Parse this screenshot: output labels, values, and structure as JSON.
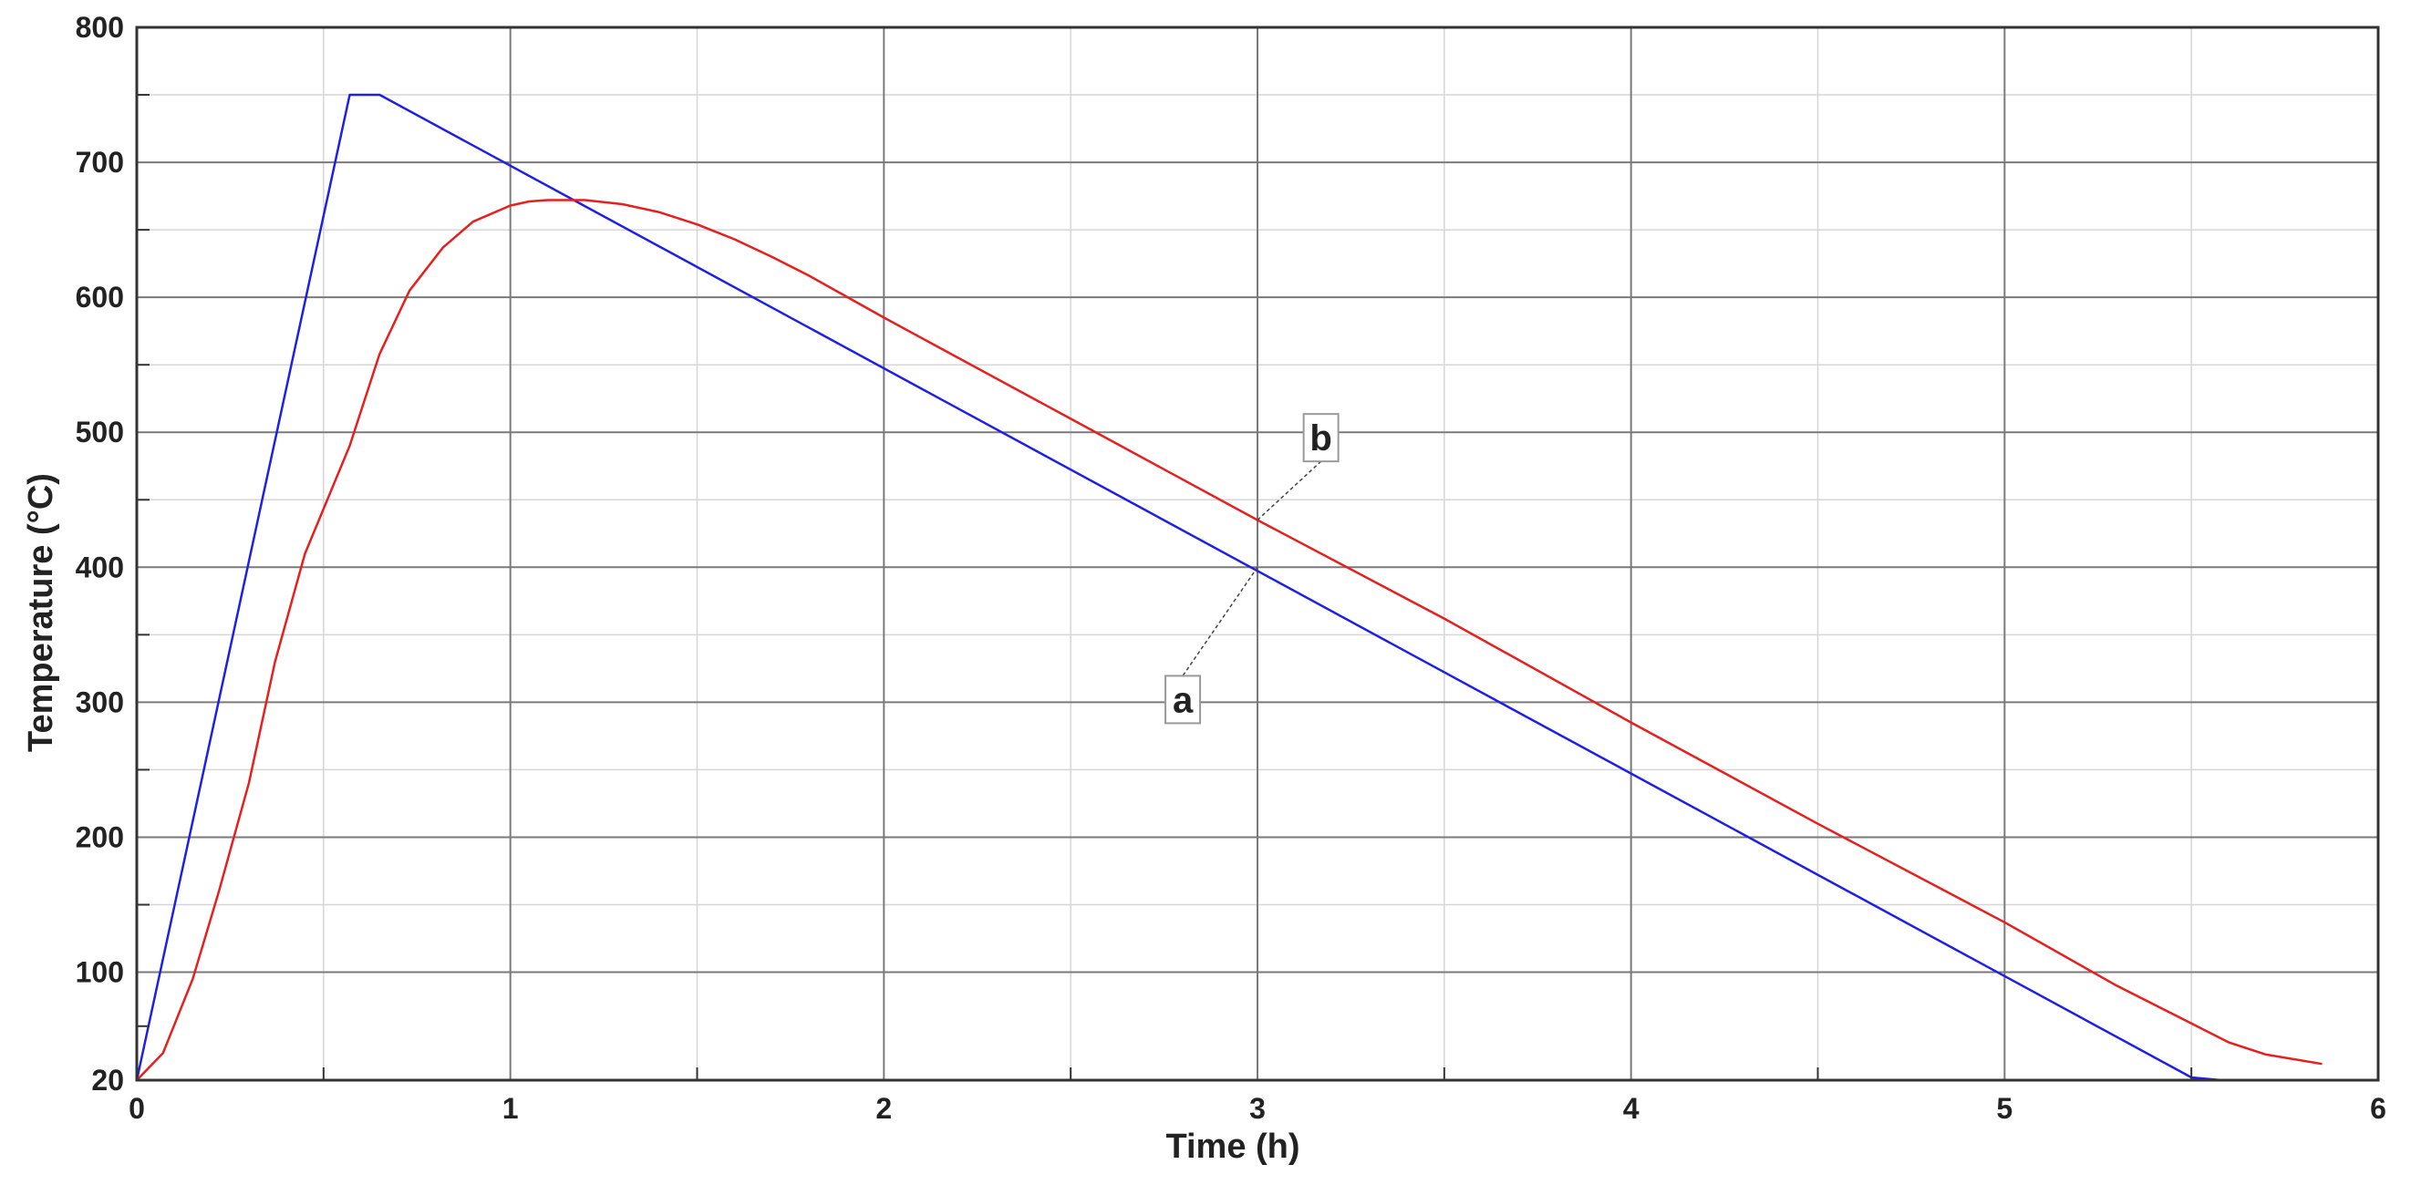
{
  "chart_data": {
    "type": "line",
    "xlabel": "Time (h)",
    "ylabel": "Temperature (°C)",
    "xlim": [
      0,
      6
    ],
    "ylim": [
      20,
      800
    ],
    "x_ticks": [
      0,
      1,
      2,
      3,
      4,
      5,
      6
    ],
    "y_ticks": [
      20,
      100,
      200,
      300,
      400,
      500,
      600,
      700,
      800
    ],
    "grid": true,
    "colors": {
      "a": "#1f1fe6",
      "b": "#e61f1f",
      "grid_major": "#7a7a7a",
      "grid_minor": "#d6d6d6"
    },
    "series": [
      {
        "name": "a",
        "x": [
          0,
          0.57,
          0.65,
          5.5,
          5.58,
          5.85
        ],
        "y": [
          20,
          750,
          750,
          22,
          20,
          20
        ]
      },
      {
        "name": "b",
        "x": [
          0,
          0.07,
          0.15,
          0.22,
          0.3,
          0.37,
          0.45,
          0.57,
          0.65,
          0.73,
          0.82,
          0.9,
          1.0,
          1.05,
          1.1,
          1.2,
          1.3,
          1.4,
          1.5,
          1.6,
          1.7,
          1.8,
          2.0,
          2.5,
          3.0,
          3.5,
          4.0,
          4.5,
          5.0,
          5.3,
          5.5,
          5.6,
          5.7,
          5.85
        ],
        "y": [
          20,
          40,
          95,
          160,
          240,
          330,
          410,
          490,
          558,
          605,
          637,
          656,
          668,
          671,
          672,
          672,
          669,
          663,
          654,
          643,
          630,
          616,
          585,
          510,
          435,
          362,
          285,
          210,
          137,
          90,
          62,
          48,
          39,
          32
        ]
      }
    ],
    "annotations": [
      {
        "text": "a",
        "series": "a",
        "point": [
          3.0,
          400
        ],
        "label_at": [
          2.8,
          302
        ]
      },
      {
        "text": "b",
        "series": "b",
        "point": [
          3.0,
          435
        ],
        "label_at": [
          3.17,
          496
        ]
      }
    ]
  }
}
